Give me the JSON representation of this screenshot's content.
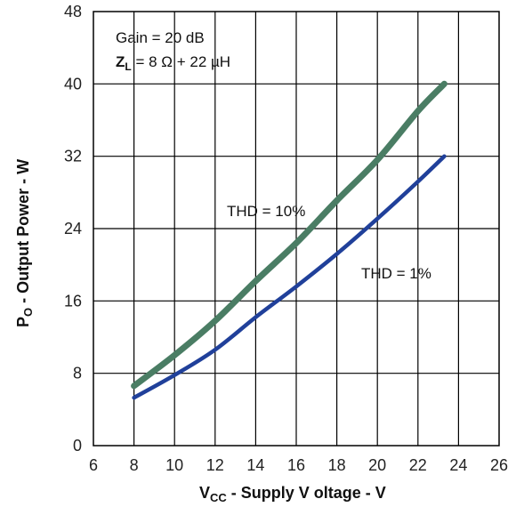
{
  "chart_data": {
    "type": "line",
    "xlabel_main": "V",
    "xlabel_sub": "CC",
    "xlabel_rest": "  - Supply V oltage - V",
    "ylabel_main": "P",
    "ylabel_sub": "O",
    "ylabel_rest": "  - Output Power - W",
    "xlim": [
      6,
      26
    ],
    "ylim": [
      0,
      48
    ],
    "xticks": [
      6,
      8,
      10,
      12,
      14,
      16,
      18,
      20,
      22,
      24,
      26
    ],
    "yticks": [
      0,
      8,
      16,
      24,
      32,
      40,
      48
    ],
    "grid": true,
    "annotations": {
      "gain": "Gain = 20 dB",
      "zl_main": "Z",
      "zl_sub": "L",
      "zl_rest": " = 8 Ω + 22 µH"
    },
    "series": [
      {
        "name": "THD = 10%",
        "color": "#4a7d64",
        "x": [
          8,
          10,
          12,
          14,
          16,
          18,
          20,
          22,
          23.3
        ],
        "y": [
          6.6,
          10,
          13.8,
          18.2,
          22.4,
          27.1,
          31.6,
          37,
          40
        ]
      },
      {
        "name": "THD = 1%",
        "color": "#20409a",
        "x": [
          8,
          10,
          12,
          14,
          16,
          18,
          20,
          22,
          23.3
        ],
        "y": [
          5.3,
          7.8,
          10.6,
          14.2,
          17.6,
          21.2,
          25.1,
          29.2,
          32
        ]
      }
    ]
  }
}
